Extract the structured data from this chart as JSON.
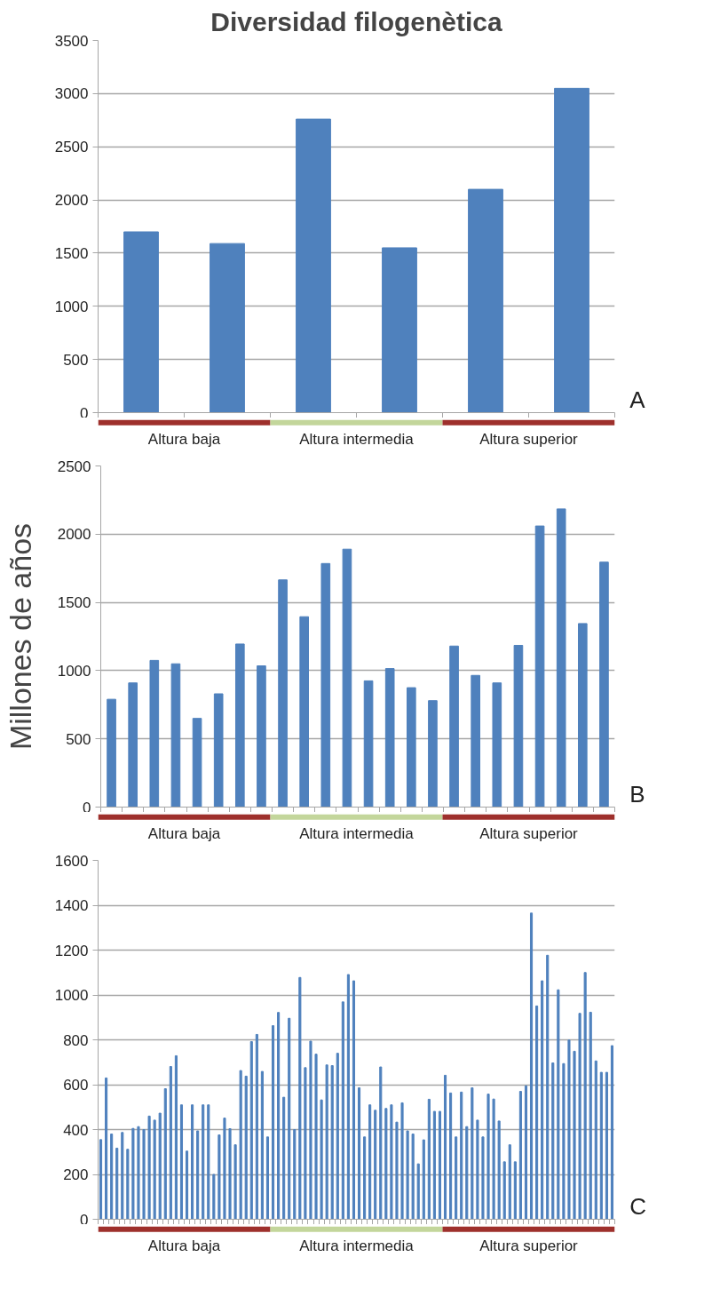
{
  "chart_data": [
    {
      "type": "bar",
      "title": "Diversidad filogenètica",
      "categories": [
        null,
        null,
        null,
        null,
        null,
        null
      ],
      "series": [
        {
          "color": "#4f81bd",
          "values": [
            1700,
            1590,
            2760,
            1550,
            2100,
            3050
          ]
        }
      ],
      "ylim": [
        0,
        3500
      ],
      "yticks": [
        0,
        500,
        1000,
        1500,
        2000,
        2500,
        3000,
        3500
      ],
      "grid": "y",
      "tick_labels": "y",
      "annotations": [
        "Altura baja",
        "Altura intermedia",
        "Altura superior",
        "A"
      ]
    },
    {
      "type": "bar",
      "ylabel": "Millones de años",
      "categories": [
        null,
        null,
        null,
        null,
        null,
        null,
        null,
        null,
        null,
        null,
        null,
        null,
        null,
        null,
        null,
        null,
        null,
        null,
        null,
        null,
        null,
        null,
        null,
        null
      ],
      "series": [
        {
          "color": "#4f81bd",
          "values": [
            790,
            910,
            1075,
            1050,
            650,
            830,
            1195,
            1035,
            1665,
            1395,
            1785,
            1890,
            925,
            1015,
            875,
            780,
            1180,
            965,
            910,
            1185,
            2060,
            2185,
            1345,
            1795
          ]
        }
      ],
      "ylim": [
        0,
        2500
      ],
      "yticks": [
        0,
        500,
        1000,
        1500,
        2000,
        2500
      ],
      "grid": "y",
      "tick_labels": "y",
      "annotations": [
        "Altura baja",
        "Altura intermedia",
        "Altura superior",
        "B"
      ]
    },
    {
      "type": "bar",
      "categories": [
        null,
        null,
        null,
        null,
        null,
        null,
        null,
        null,
        null,
        null,
        null,
        null,
        null,
        null,
        null,
        null,
        null,
        null,
        null,
        null,
        null,
        null,
        null,
        null,
        null,
        null,
        null,
        null,
        null,
        null,
        null,
        null,
        null,
        null,
        null,
        null,
        null,
        null,
        null,
        null,
        null,
        null,
        null,
        null,
        null,
        null,
        null,
        null,
        null,
        null,
        null,
        null,
        null,
        null,
        null,
        null,
        null,
        null,
        null,
        null,
        null,
        null,
        null,
        null,
        null,
        null,
        null,
        null,
        null,
        null,
        null,
        null,
        null,
        null,
        null,
        null,
        null,
        null,
        null,
        null,
        null,
        null,
        null,
        null,
        null,
        null,
        null,
        null,
        null,
        null,
        null,
        null,
        null,
        null,
        null,
        null
      ],
      "series": [
        {
          "color": "#4f81bd",
          "values": [
            355,
            630,
            380,
            317,
            387,
            312,
            405,
            413,
            400,
            460,
            442,
            473,
            582,
            681,
            729,
            510,
            304,
            510,
            394,
            510,
            510,
            200,
            376,
            451,
            404,
            332,
            663,
            638,
            792,
            824,
            659,
            367,
            863,
            922,
            544,
            896,
            400,
            1078,
            676,
            794,
            736,
            532,
            688,
            685,
            740,
            969,
            1091,
            1063,
            586,
            367,
            510,
            486,
            679,
            494,
            510,
            433,
            519,
            394,
            380,
            247,
            354,
            535,
            481,
            481,
            642,
            563,
            367,
            567,
            413,
            586,
            442,
            367,
            558,
            536,
            438,
            256,
            332,
            256,
            570,
            595,
            1365,
            951,
            1063,
            1177,
            697,
            1023,
            694,
            799,
            749,
            918,
            1100,
            923,
            706,
            655,
            655,
            774
          ]
        }
      ],
      "ylim": [
        0,
        1600
      ],
      "yticks": [
        0,
        200,
        400,
        600,
        800,
        1000,
        1200,
        1400,
        1600
      ],
      "grid": "y",
      "tick_labels": "y",
      "annotations": [
        "Altura baja",
        "Altura intermedia",
        "Altura superior",
        "C"
      ]
    }
  ]
}
